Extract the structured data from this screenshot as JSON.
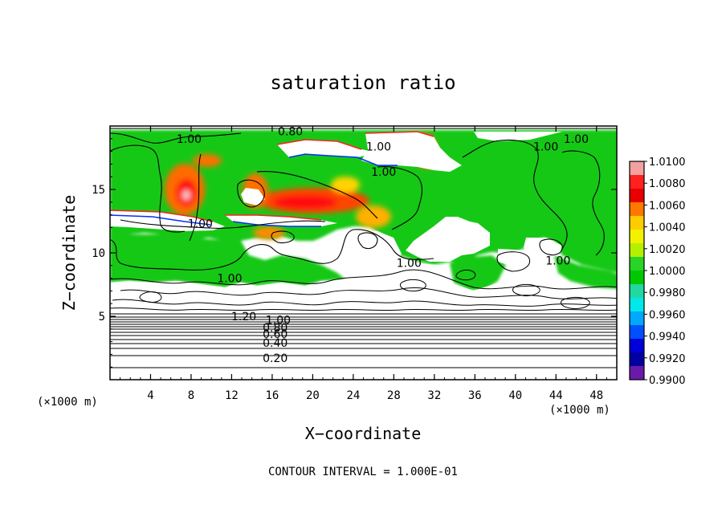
{
  "chart_data": {
    "type": "heatmap",
    "title": "saturation ratio",
    "xlabel": "X−coordinate",
    "ylabel": "Z−coordinate",
    "x_unit": "(×1000 m)",
    "y_unit": "(×1000 m)",
    "xlim": [
      0,
      50
    ],
    "ylim": [
      0,
      20
    ],
    "x_ticks": [
      4,
      8,
      12,
      16,
      20,
      24,
      28,
      32,
      36,
      40,
      44,
      48
    ],
    "y_ticks": [
      5,
      10,
      15
    ],
    "colorbar": {
      "ticks": [
        "1.0100",
        "1.0080",
        "1.0060",
        "1.0040",
        "1.0020",
        "1.0000",
        "0.9980",
        "0.9960",
        "0.9940",
        "0.9920",
        "0.9900"
      ],
      "colors": [
        "#f2a0a0",
        "#ff2020",
        "#e80000",
        "#ff7800",
        "#ffcc00",
        "#f2f200",
        "#b4f000",
        "#28d428",
        "#00c800",
        "#20d8a0",
        "#00e8e8",
        "#00a8ff",
        "#0050ff",
        "#0000d8",
        "#0000a0",
        "#6a1aa8"
      ]
    },
    "contour_interval": "1.000E-01",
    "contour_labels": [
      {
        "text": "0.80",
        "x": 17.8,
        "y": 19.6
      },
      {
        "text": "1.00",
        "x": 7.8,
        "y": 19.0
      },
      {
        "text": "1.00",
        "x": 26.5,
        "y": 18.4
      },
      {
        "text": "1.00",
        "x": 27.0,
        "y": 16.4
      },
      {
        "text": "1.00",
        "x": 43.0,
        "y": 18.4
      },
      {
        "text": "1.00",
        "x": 46.0,
        "y": 19.0
      },
      {
        "text": "1.00",
        "x": 8.9,
        "y": 12.3
      },
      {
        "text": "1.00",
        "x": 11.8,
        "y": 8.0
      },
      {
        "text": "1.00",
        "x": 29.5,
        "y": 9.2
      },
      {
        "text": "1.00",
        "x": 44.2,
        "y": 9.4
      },
      {
        "text": "1.20",
        "x": 13.2,
        "y": 5.0
      },
      {
        "text": "1.00",
        "x": 16.6,
        "y": 4.7
      },
      {
        "text": "0.80",
        "x": 16.3,
        "y": 4.1
      },
      {
        "text": "0.60",
        "x": 16.3,
        "y": 3.6
      },
      {
        "text": "0.40",
        "x": 16.3,
        "y": 2.9
      },
      {
        "text": "0.20",
        "x": 16.3,
        "y": 1.7
      }
    ],
    "footer": "CONTOUR INTERVAL = 1.000E-01"
  }
}
